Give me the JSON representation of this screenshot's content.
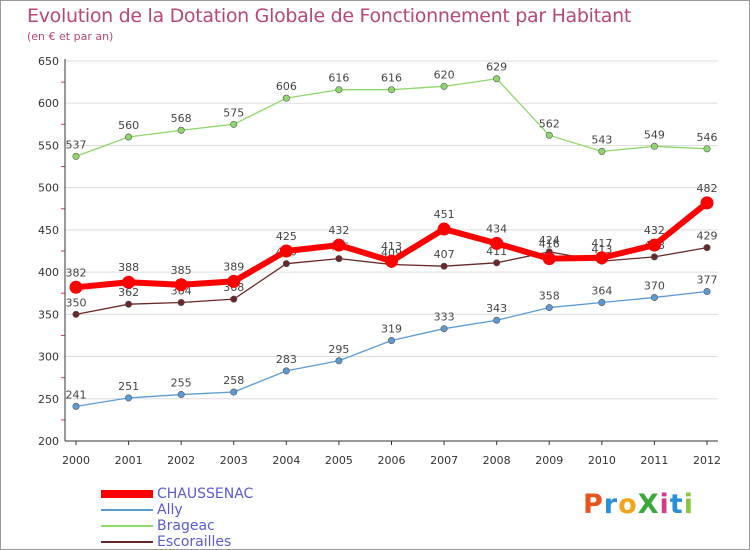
{
  "header": {
    "title": "Evolution de la Dotation Globale de Fonctionnement par Habitant",
    "subtitle": "(en € et par an)"
  },
  "logo": {
    "text": "ProXiti",
    "letters": [
      {
        "ch": "P",
        "color": "#e8541b"
      },
      {
        "ch": "r",
        "color": "#2a8fd6"
      },
      {
        "ch": "o",
        "color": "#f2a51b"
      },
      {
        "ch": "X",
        "color": "#3aa83a"
      },
      {
        "ch": "i",
        "color": "#d63a8a"
      },
      {
        "ch": "t",
        "color": "#2a8fd6"
      },
      {
        "ch": "i",
        "color": "#8dc63f"
      }
    ]
  },
  "chart_data": {
    "type": "line",
    "x": [
      "2000",
      "2001",
      "2002",
      "2003",
      "2004",
      "2005",
      "2006",
      "2007",
      "2008",
      "2009",
      "2010",
      "2011",
      "2012"
    ],
    "ylim": [
      200,
      650
    ],
    "yticks": [
      200,
      250,
      300,
      350,
      400,
      450,
      500,
      550,
      600,
      650
    ],
    "grid": "horizontal",
    "legend_position": "bottom-left",
    "series": [
      {
        "name": "Brageac",
        "color": "#8ed86a",
        "values": [
          537,
          560,
          568,
          575,
          606,
          616,
          616,
          620,
          629,
          562,
          543,
          549,
          546
        ]
      },
      {
        "name": "Escorailles",
        "color": "#6b2727",
        "values": [
          350,
          362,
          364,
          368,
          410,
          416,
          409,
          407,
          411,
          424,
          413,
          418,
          429
        ]
      },
      {
        "name": "Ally",
        "color": "#5b9bd5",
        "values": [
          241,
          251,
          255,
          258,
          283,
          295,
          319,
          333,
          343,
          358,
          364,
          370,
          377
        ]
      },
      {
        "name": "CHAUSSENAC",
        "color": "#ff0000",
        "values": [
          382,
          388,
          385,
          389,
          425,
          432,
          413,
          451,
          434,
          416,
          417,
          432,
          482
        ]
      }
    ],
    "legend_order": [
      "CHAUSSENAC",
      "Ally",
      "Brageac",
      "Escorailles"
    ]
  }
}
